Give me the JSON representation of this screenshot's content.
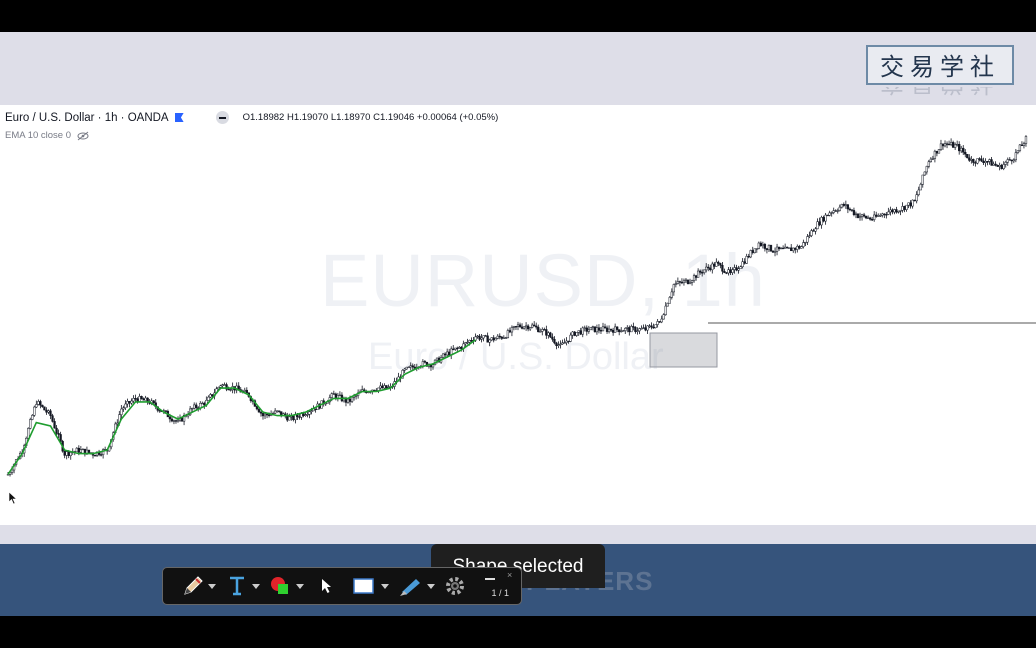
{
  "header": {
    "brand_text": "交易学社"
  },
  "chart_header": {
    "symbol": "Euro / U.S. Dollar · 1h · OANDA",
    "ohlc": "O1.18982 H1.19070 L1.18970 C1.19046 +0.00064 (+0.05%)",
    "indicator": "EMA 10 close 0"
  },
  "watermark": {
    "symbol": "EURUSD, 1h",
    "description": "Euro / U.S. Dollar"
  },
  "toast": {
    "text": "Shape selected"
  },
  "footer": {
    "players_text": "PLAYERS"
  },
  "toolbar": {
    "page_indicator": "1 / 1",
    "close_glyph": "×",
    "tools": [
      "pencil-tool",
      "text-tool",
      "shape-color-tool",
      "pointer-tool",
      "rectangle-tool",
      "highlighter-tool",
      "settings-tool"
    ]
  },
  "colors": {
    "ema": "#1f9d2f",
    "candles": "#131722",
    "footer_band": "#36547c",
    "header_band": "#dedee8"
  },
  "chart_data": {
    "type": "line",
    "title": "",
    "series": [
      {
        "name": "",
        "values": [
          0.06,
          0.13,
          0.27,
          0.23,
          0.12,
          0.13,
          0.12,
          0.13,
          0.25,
          0.28,
          0.27,
          0.24,
          0.21,
          0.25,
          0.27,
          0.32,
          0.31,
          0.29,
          0.23,
          0.24,
          0.22,
          0.24,
          0.26,
          0.29,
          0.27,
          0.3,
          0.31,
          0.31,
          0.36,
          0.38,
          0.38,
          0.41,
          0.43,
          0.46,
          0.45,
          0.46,
          0.49,
          0.49,
          0.47,
          0.43,
          0.47,
          0.48,
          0.48,
          0.48,
          0.48,
          0.48,
          0.5,
          0.61,
          0.62,
          0.65,
          0.67,
          0.64,
          0.68,
          0.73,
          0.71,
          0.71,
          0.72,
          0.78,
          0.82,
          0.84,
          0.81,
          0.8,
          0.82,
          0.83,
          0.85,
          0.97,
          1.02,
          1.01,
          0.97,
          0.97,
          0.95,
          0.98,
          1.04
        ]
      },
      {
        "name": "EMA 10 close 0",
        "values": [
          0.06,
          0.12,
          0.21,
          0.2,
          0.13,
          0.12,
          0.12,
          0.13,
          0.22,
          0.27,
          0.27,
          0.24,
          0.22,
          0.24,
          0.26,
          0.31,
          0.31,
          0.29,
          0.24,
          0.23,
          0.23,
          0.24,
          0.26,
          0.28,
          0.28,
          0.3,
          0.3,
          0.31,
          0.35,
          0.37,
          0.38,
          0.4,
          0.42,
          0.45
        ]
      }
    ],
    "annotations": [
      "rectangle",
      "horizontal-line"
    ],
    "grid": false
  }
}
